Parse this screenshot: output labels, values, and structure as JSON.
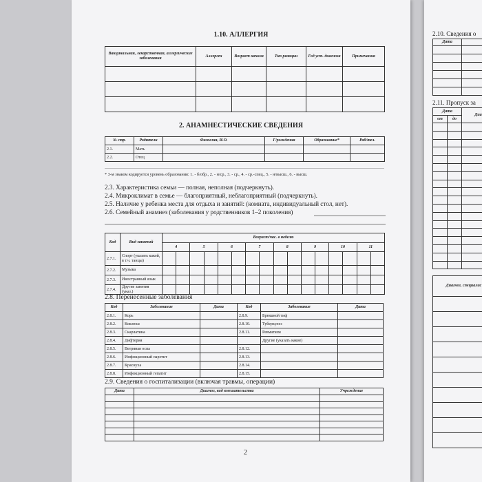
{
  "page_number": "2",
  "allergy": {
    "title": "1.10. АЛЛЕРГИЯ",
    "headers": [
      "Вакцинальная, лекарственная, аллергические заболевания",
      "Аллерген",
      "Возраст начала",
      "Тип реакции",
      "Год уст. диагноза",
      "Примечания"
    ],
    "empty_rows": 3
  },
  "anamnesis": {
    "title": "2. АНАМНЕСТИЧЕСКИЕ СВЕДЕНИЯ",
    "headers": [
      "№ стр.",
      "Родители",
      "Фамилия, И.О.",
      "Г/рождения",
      "Образование*",
      "Раб/тел."
    ],
    "rows": [
      [
        "2.1.",
        "Мать"
      ],
      [
        "2.2.",
        "Отец"
      ]
    ],
    "footnote": "* 3-м знаком кодируется уровень образования: 1. - б/обр., 2. - н/ср., 3. - ср., 4. - ср.-спец., 5. - н/высш., 6. - высш.",
    "lines": [
      "2.3. Характеристика семьи — полная, неполная (подчеркнуть).",
      "2.4. Микроклимат в семье — благоприятный, неблагоприятный (подчеркнуть).",
      "2.5. Наличие у ребенка места для отдыха и занятий: (комната, индивидуальный стол, нет).",
      "2.6. Семейный анамнез (заболевания у родственников 1–2 поколения)"
    ]
  },
  "activities": {
    "headers": [
      "Код",
      "Вид занятий",
      "Возраст/час. в неделю"
    ],
    "ages": [
      "4",
      "5",
      "6",
      "7",
      "8",
      "9",
      "10",
      "11"
    ],
    "rows": [
      [
        "2.7.1.",
        "Спорт (указать какой, в т.ч. танцы)"
      ],
      [
        "2.7.2.",
        "Музыка"
      ],
      [
        "2.7.3.",
        "Иностранный язык"
      ],
      [
        "2.7.4.",
        "Другие занятия (указ.)"
      ]
    ]
  },
  "diseases": {
    "title": "2.8. Перенесенные заболевания",
    "headers": [
      "Код",
      "Заболевание",
      "Дата",
      "Код",
      "Заболевание",
      "Дата"
    ],
    "rows": [
      [
        "2.8.1.",
        "Корь",
        "2.8.9.",
        "Брюшной тиф"
      ],
      [
        "2.8.2.",
        "Коклюш",
        "2.8.10.",
        "Туберкулез"
      ],
      [
        "2.8.3.",
        "Скарлатина",
        "2.8.11.",
        "Ревматизм"
      ],
      [
        "2.8.4.",
        "Дифтерия",
        "",
        "Другие (указать какие)"
      ],
      [
        "2.8.5.",
        "Ветряная оспа",
        "2.8.12.",
        ""
      ],
      [
        "2.8.6.",
        "Инфекционный паротит",
        "2.8.13.",
        ""
      ],
      [
        "2.8.7.",
        "Краснуха",
        "2.8.14.",
        ""
      ],
      [
        "2.8.8.",
        "Инфекционный гепатит",
        "2.8.15.",
        ""
      ]
    ]
  },
  "hospital": {
    "title": "2.9. Сведения о госпитализации (включая травмы, операции)",
    "headers": [
      "Дата",
      "Диагноз, вид вмешательства",
      "Учреждение"
    ],
    "empty_rows": 7
  },
  "right": {
    "s210_title": "2.10. Сведения о",
    "s210_header": "Дата",
    "s211_title": "2.11. Пропуск за",
    "s211_headers": [
      "Дата",
      "Диа",
      "от",
      "до"
    ],
    "s212_header": "Диагноз, специалис"
  }
}
